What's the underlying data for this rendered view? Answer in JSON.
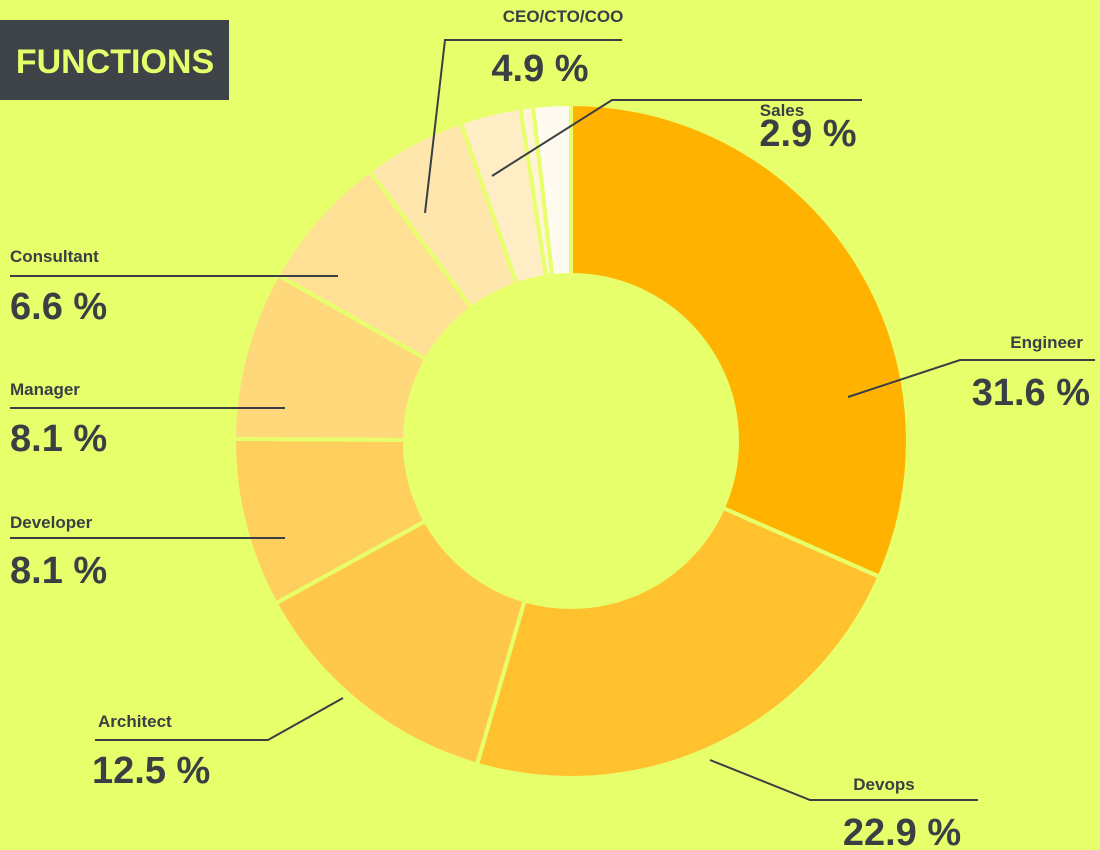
{
  "chart_data": {
    "type": "pie",
    "title": "FUNCTIONS",
    "categories": [
      "Engineer",
      "Devops",
      "Architect",
      "Developer",
      "Manager",
      "Consultant",
      "CEO/CTO/COO",
      "Sales",
      null,
      null
    ],
    "values": [
      31.6,
      22.9,
      12.5,
      8.1,
      8.1,
      6.6,
      4.9,
      2.9,
      0.6,
      1.8
    ],
    "value_labels": [
      "31.6 %",
      "22.9 %",
      "12.5 %",
      "8.1 %",
      "8.1 %",
      "6.6 %",
      "4.9 %",
      "2.9 %",
      null,
      null
    ],
    "colors": [
      "#ffb300",
      "#ffc12e",
      "#ffc84a",
      "#ffcf5e",
      "#ffd87c",
      "#ffe095",
      "#ffe6ad",
      "#ffedc6",
      "#fff3d8",
      "#fffaf0"
    ],
    "donut": true
  }
}
